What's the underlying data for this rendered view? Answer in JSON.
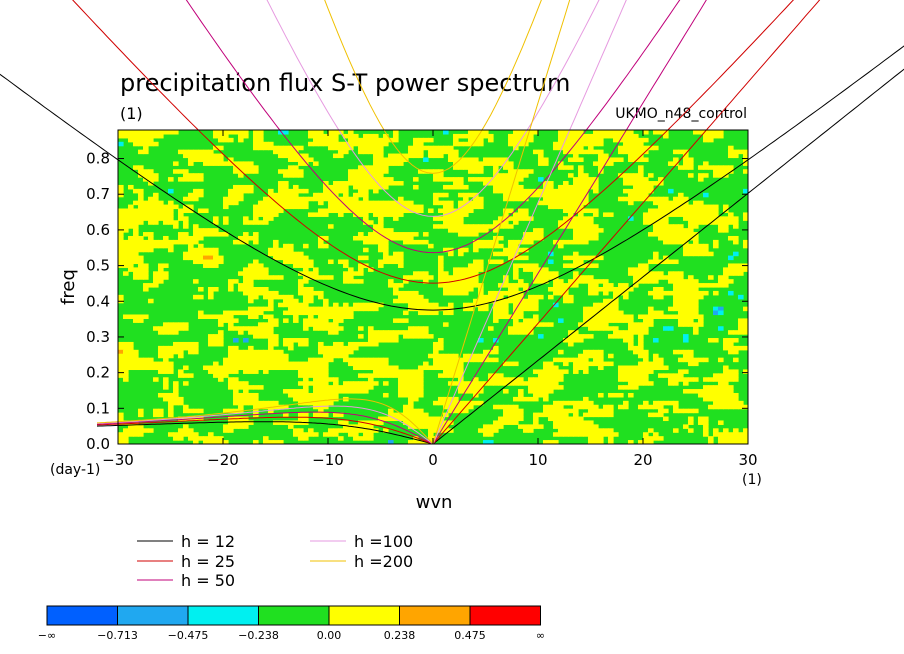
{
  "chart_data": {
    "type": "heatmap",
    "title": "precipitation flux S-T power spectrum",
    "subtitle_left": "(1)",
    "subtitle_right": "UKMO_n48_control",
    "xlabel": "wvn",
    "ylabel": "freq",
    "x_unit": "(1)",
    "y_unit": "(day-1)",
    "xlim": [
      -30,
      30
    ],
    "ylim": [
      0,
      0.88
    ],
    "x_ticks": [
      -30,
      -20,
      -10,
      0,
      10,
      20,
      30
    ],
    "y_ticks": [
      0.0,
      0.1,
      0.2,
      0.3,
      0.4,
      0.5,
      0.6,
      0.7,
      0.8
    ],
    "x_tick_labels": [
      "−30",
      "−20",
      "−10",
      "0",
      "10",
      "20",
      "30"
    ],
    "y_tick_labels": [
      "0.0",
      "0.1",
      "0.2",
      "0.3",
      "0.4",
      "0.5",
      "0.6",
      "0.7",
      "0.8"
    ],
    "dispersion_curves": [
      {
        "name": "h = 12",
        "h": 12,
        "color": "#000000"
      },
      {
        "name": "h = 25",
        "h": 25,
        "color": "#d00000"
      },
      {
        "name": "h = 50",
        "h": 50,
        "color": "#c0007a"
      },
      {
        "name": "h =100",
        "h": 100,
        "color": "#e69ae0"
      },
      {
        "name": "h =200",
        "h": 200,
        "color": "#f0c000"
      }
    ],
    "colorbar": {
      "colors": [
        "#0060ff",
        "#20a8f0",
        "#00f0f0",
        "#20e020",
        "#ffff00",
        "#ffa500",
        "#ff0000"
      ],
      "labels": [
        "−∞",
        "−0.713",
        "−0.475",
        "−0.238",
        "0.00",
        "0.238",
        "0.475",
        "∞"
      ]
    }
  }
}
